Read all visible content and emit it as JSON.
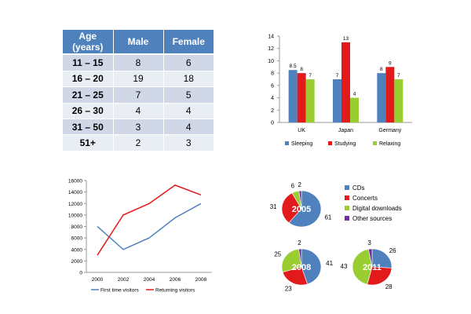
{
  "age_table": {
    "headers": [
      "Age (years)",
      "Male",
      "Female"
    ],
    "rows": [
      [
        "11 – 15",
        "8",
        "6"
      ],
      [
        "16 – 20",
        "19",
        "18"
      ],
      [
        "21 – 25",
        "7",
        "5"
      ],
      [
        "26 – 30",
        "4",
        "4"
      ],
      [
        "31 – 50",
        "3",
        "4"
      ],
      [
        "51+",
        "2",
        "3"
      ]
    ]
  },
  "chart_data": [
    {
      "type": "bar",
      "categories": [
        "UK",
        "Japan",
        "Germany"
      ],
      "series": [
        {
          "name": "Sleeping",
          "values": [
            8.5,
            7,
            8
          ],
          "color": "#4f81bd"
        },
        {
          "name": "Studying",
          "values": [
            8,
            13,
            9
          ],
          "color": "#e31a1c"
        },
        {
          "name": "Relaxing",
          "values": [
            7,
            4,
            7
          ],
          "color": "#9acd32"
        }
      ],
      "yticks": [
        "0",
        "2",
        "4",
        "6",
        "8",
        "10",
        "12",
        "14"
      ],
      "ylim": [
        0,
        14
      ],
      "data_labels": true,
      "legend": "bottom",
      "grid": false
    },
    {
      "type": "line",
      "x": [
        "2000",
        "2002",
        "2004",
        "2006",
        "2008"
      ],
      "series": [
        {
          "name": "First time visitors",
          "values": [
            8000,
            4000,
            6000,
            9500,
            12000
          ],
          "color": "#4f81bd"
        },
        {
          "name": "Returning visitors",
          "values": [
            3000,
            10000,
            12000,
            15200,
            13500
          ],
          "color": "#e31a1c"
        }
      ],
      "yticks": [
        "0",
        "2000",
        "4000",
        "6000",
        "8000",
        "10000",
        "12000",
        "14000",
        "16000"
      ],
      "ylim": [
        0,
        16000
      ],
      "legend": "bottom",
      "grid": false
    },
    {
      "type": "pie",
      "legend_entries": [
        {
          "label": "CDs",
          "color": "#4f81bd"
        },
        {
          "label": "Concerts",
          "color": "#e31a1c"
        },
        {
          "label": "Digital downloads",
          "color": "#9acd32"
        },
        {
          "label": "Other sources",
          "color": "#7030a0"
        }
      ],
      "pies": [
        {
          "title": "2005",
          "values": [
            61,
            31,
            6,
            2
          ]
        },
        {
          "title": "2008",
          "values": [
            41,
            23,
            25,
            2
          ]
        },
        {
          "title": "2011",
          "values": [
            26,
            28,
            43,
            3
          ]
        }
      ]
    }
  ]
}
